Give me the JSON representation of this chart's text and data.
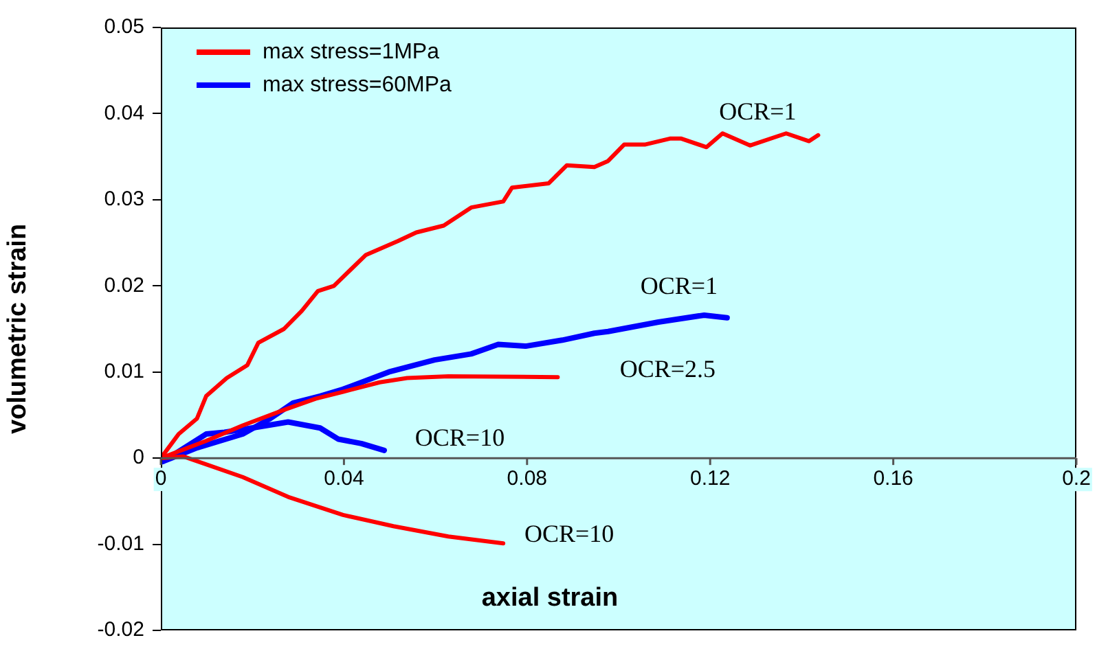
{
  "chart_data": {
    "type": "line",
    "xlabel": "axial strain",
    "ylabel": "volumetric strain",
    "xlim": [
      0,
      0.2
    ],
    "xticks": [
      0,
      0.04,
      0.08,
      0.12,
      0.16,
      0.2
    ],
    "ylim": [
      -0.02,
      0.05
    ],
    "yticks": [
      -0.02,
      -0.01,
      0,
      0.01,
      0.02,
      0.03,
      0.04,
      0.05
    ],
    "grid": false,
    "legend": "top left",
    "marker": "none",
    "line_style": "solid",
    "series": [
      {
        "name": "max stress=1MPa",
        "color": "#ff0000",
        "x": [
          0,
          0.0039,
          0.0079,
          0.0099,
          0.0144,
          0.0189,
          0.0213,
          0.0269,
          0.0308,
          0.0343,
          0.0378,
          0.0448,
          0.0518,
          0.0558,
          0.0618,
          0.0678,
          0.0748,
          0.0767,
          0.0847,
          0.0887,
          0.0947,
          0.0977,
          0.1012,
          0.1057,
          0.1112,
          0.1137,
          0.1192,
          0.1227,
          0.1287,
          0.1366,
          0.1416,
          0.1436
        ],
        "values": [
          0,
          0.0028,
          0.0046,
          0.0072,
          0.0093,
          0.0108,
          0.0134,
          0.015,
          0.0171,
          0.0194,
          0.02,
          0.0236,
          0.0252,
          0.0262,
          0.027,
          0.0291,
          0.0298,
          0.0314,
          0.0319,
          0.034,
          0.0338,
          0.0345,
          0.0364,
          0.0364,
          0.0371,
          0.0371,
          0.0361,
          0.0377,
          0.0363,
          0.0377,
          0.0368,
          0.0375
        ]
      },
      {
        "color": "#ff0000",
        "x": [
          0,
          0.0099,
          0.0179,
          0.0269,
          0.0338,
          0.0398,
          0.0478,
          0.0538,
          0.0628,
          0.0867
        ],
        "values": [
          0,
          0.002,
          0.0038,
          0.0056,
          0.0069,
          0.0077,
          0.0088,
          0.0093,
          0.0095,
          0.0094
        ]
      },
      {
        "color": "#ff0000",
        "x": [
          0,
          0.0049,
          0.0179,
          0.0278,
          0.0398,
          0.0508,
          0.0628,
          0.0748
        ],
        "values": [
          0,
          0.0002,
          -0.0022,
          -0.0045,
          -0.0066,
          -0.0079,
          -0.0091,
          -0.0099
        ]
      },
      {
        "name": "max stress=60MPa",
        "color": "#0000ff",
        "x": [
          0.0004,
          0.0079,
          0.0179,
          0.0239,
          0.0289,
          0.0348,
          0.0398,
          0.0498,
          0.0598,
          0.0678,
          0.0737,
          0.0797,
          0.0877,
          0.0947,
          0.0977,
          0.1087,
          0.1187,
          0.1237
        ],
        "values": [
          -0.0004,
          0.0012,
          0.0028,
          0.0046,
          0.0064,
          0.0072,
          0.008,
          0.01,
          0.0114,
          0.0121,
          0.0132,
          0.013,
          0.0137,
          0.0145,
          0.0147,
          0.0158,
          0.0166,
          0.0163
        ]
      },
      {
        "color": "#0000ff",
        "x": [
          0.0004,
          0.0099,
          0.0139,
          0.0199,
          0.0278,
          0.0348,
          0.0388,
          0.0438,
          0.0488
        ],
        "values": [
          -0.0004,
          0.0028,
          0.003,
          0.0035,
          0.0042,
          0.0035,
          0.0022,
          0.0017,
          0.0009
        ]
      }
    ],
    "annotations": [
      {
        "text": "OCR=1",
        "x": 0.1436,
        "y": 0.0375
      },
      {
        "text": "OCR=1",
        "x": 0.1237,
        "y": 0.0163
      },
      {
        "text": "OCR=2.5",
        "x": 0.0867,
        "y": 0.0094
      },
      {
        "text": "OCR=10",
        "x": 0.0488,
        "y": 0.0009
      },
      {
        "text": "OCR=10",
        "x": 0.0748,
        "y": -0.0099
      }
    ]
  }
}
